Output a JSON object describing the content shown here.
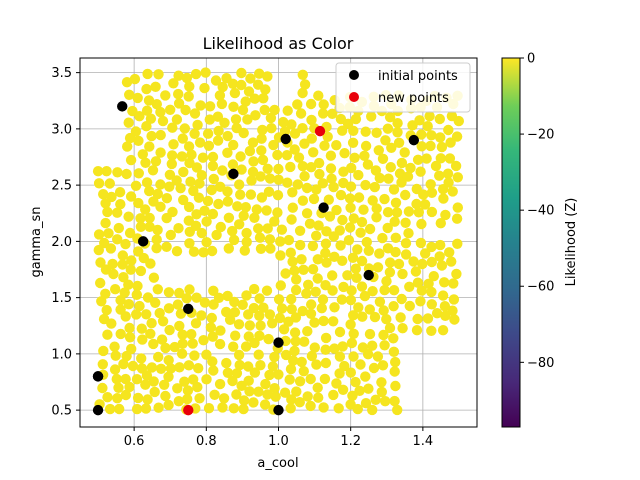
{
  "chart_data": {
    "type": "scatter",
    "title": "Likelihood as Color",
    "xlabel": "a_cool",
    "ylabel": "gamma_sn",
    "xlim": [
      0.45,
      1.55
    ],
    "ylim": [
      0.35,
      3.63
    ],
    "xticks": [
      0.6,
      0.8,
      1.0,
      1.2,
      1.4
    ],
    "xtick_labels": [
      "0.6",
      "0.8",
      "1.0",
      "1.2",
      "1.4"
    ],
    "yticks": [
      0.5,
      1.0,
      1.5,
      2.0,
      2.5,
      3.0,
      3.5
    ],
    "ytick_labels": [
      "0.5",
      "1.0",
      "1.5",
      "2.0",
      "2.5",
      "3.0",
      "3.5"
    ],
    "grid": true,
    "legend_position": "top-right",
    "series": [
      {
        "name": "initial points",
        "color": "#000000",
        "x": [
          0.567,
          0.5,
          1.375,
          1.02,
          0.875,
          1.125,
          0.625,
          1.25,
          0.75,
          1.0,
          0.5,
          0.5,
          1.0
        ],
        "y": [
          3.2,
          0.8,
          2.9,
          2.91,
          2.6,
          2.3,
          2.0,
          1.7,
          1.4,
          1.1,
          0.8,
          0.5,
          0.5
        ]
      },
      {
        "name": "new points",
        "color": "#e8000b",
        "x": [
          1.115,
          0.75
        ],
        "y": [
          2.98,
          0.5
        ]
      }
    ],
    "samples": {
      "color": "#f5e51f",
      "description_count": 900,
      "x_range": [
        0.5,
        1.5
      ],
      "y_range": [
        0.5,
        3.5
      ],
      "gaps": [
        {
          "x": [
            0.48,
            0.58
          ],
          "y": [
            2.65,
            3.5
          ]
        },
        {
          "x": [
            0.97,
            1.05
          ],
          "y": [
            3.22,
            3.5
          ]
        },
        {
          "x": [
            1.08,
            1.5
          ],
          "y": [
            3.3,
            3.5
          ]
        },
        {
          "x": [
            1.37,
            1.5
          ],
          "y": [
            2.0,
            2.15
          ]
        },
        {
          "x": [
            1.33,
            1.5
          ],
          "y": [
            0.5,
            1.2
          ]
        },
        {
          "x": [
            0.66,
            1.0
          ],
          "y": [
            1.58,
            1.9
          ]
        }
      ]
    },
    "colorbar": {
      "label": "Likelihood (Z)",
      "ticks": [
        0,
        -20,
        -40,
        -60,
        -80
      ],
      "tick_labels": [
        "0",
        "−20",
        "−40",
        "−60",
        "−80"
      ],
      "range": [
        -97,
        0
      ],
      "colors": [
        "#440154",
        "#3b528b",
        "#21918c",
        "#5ec962",
        "#fde725"
      ]
    }
  }
}
